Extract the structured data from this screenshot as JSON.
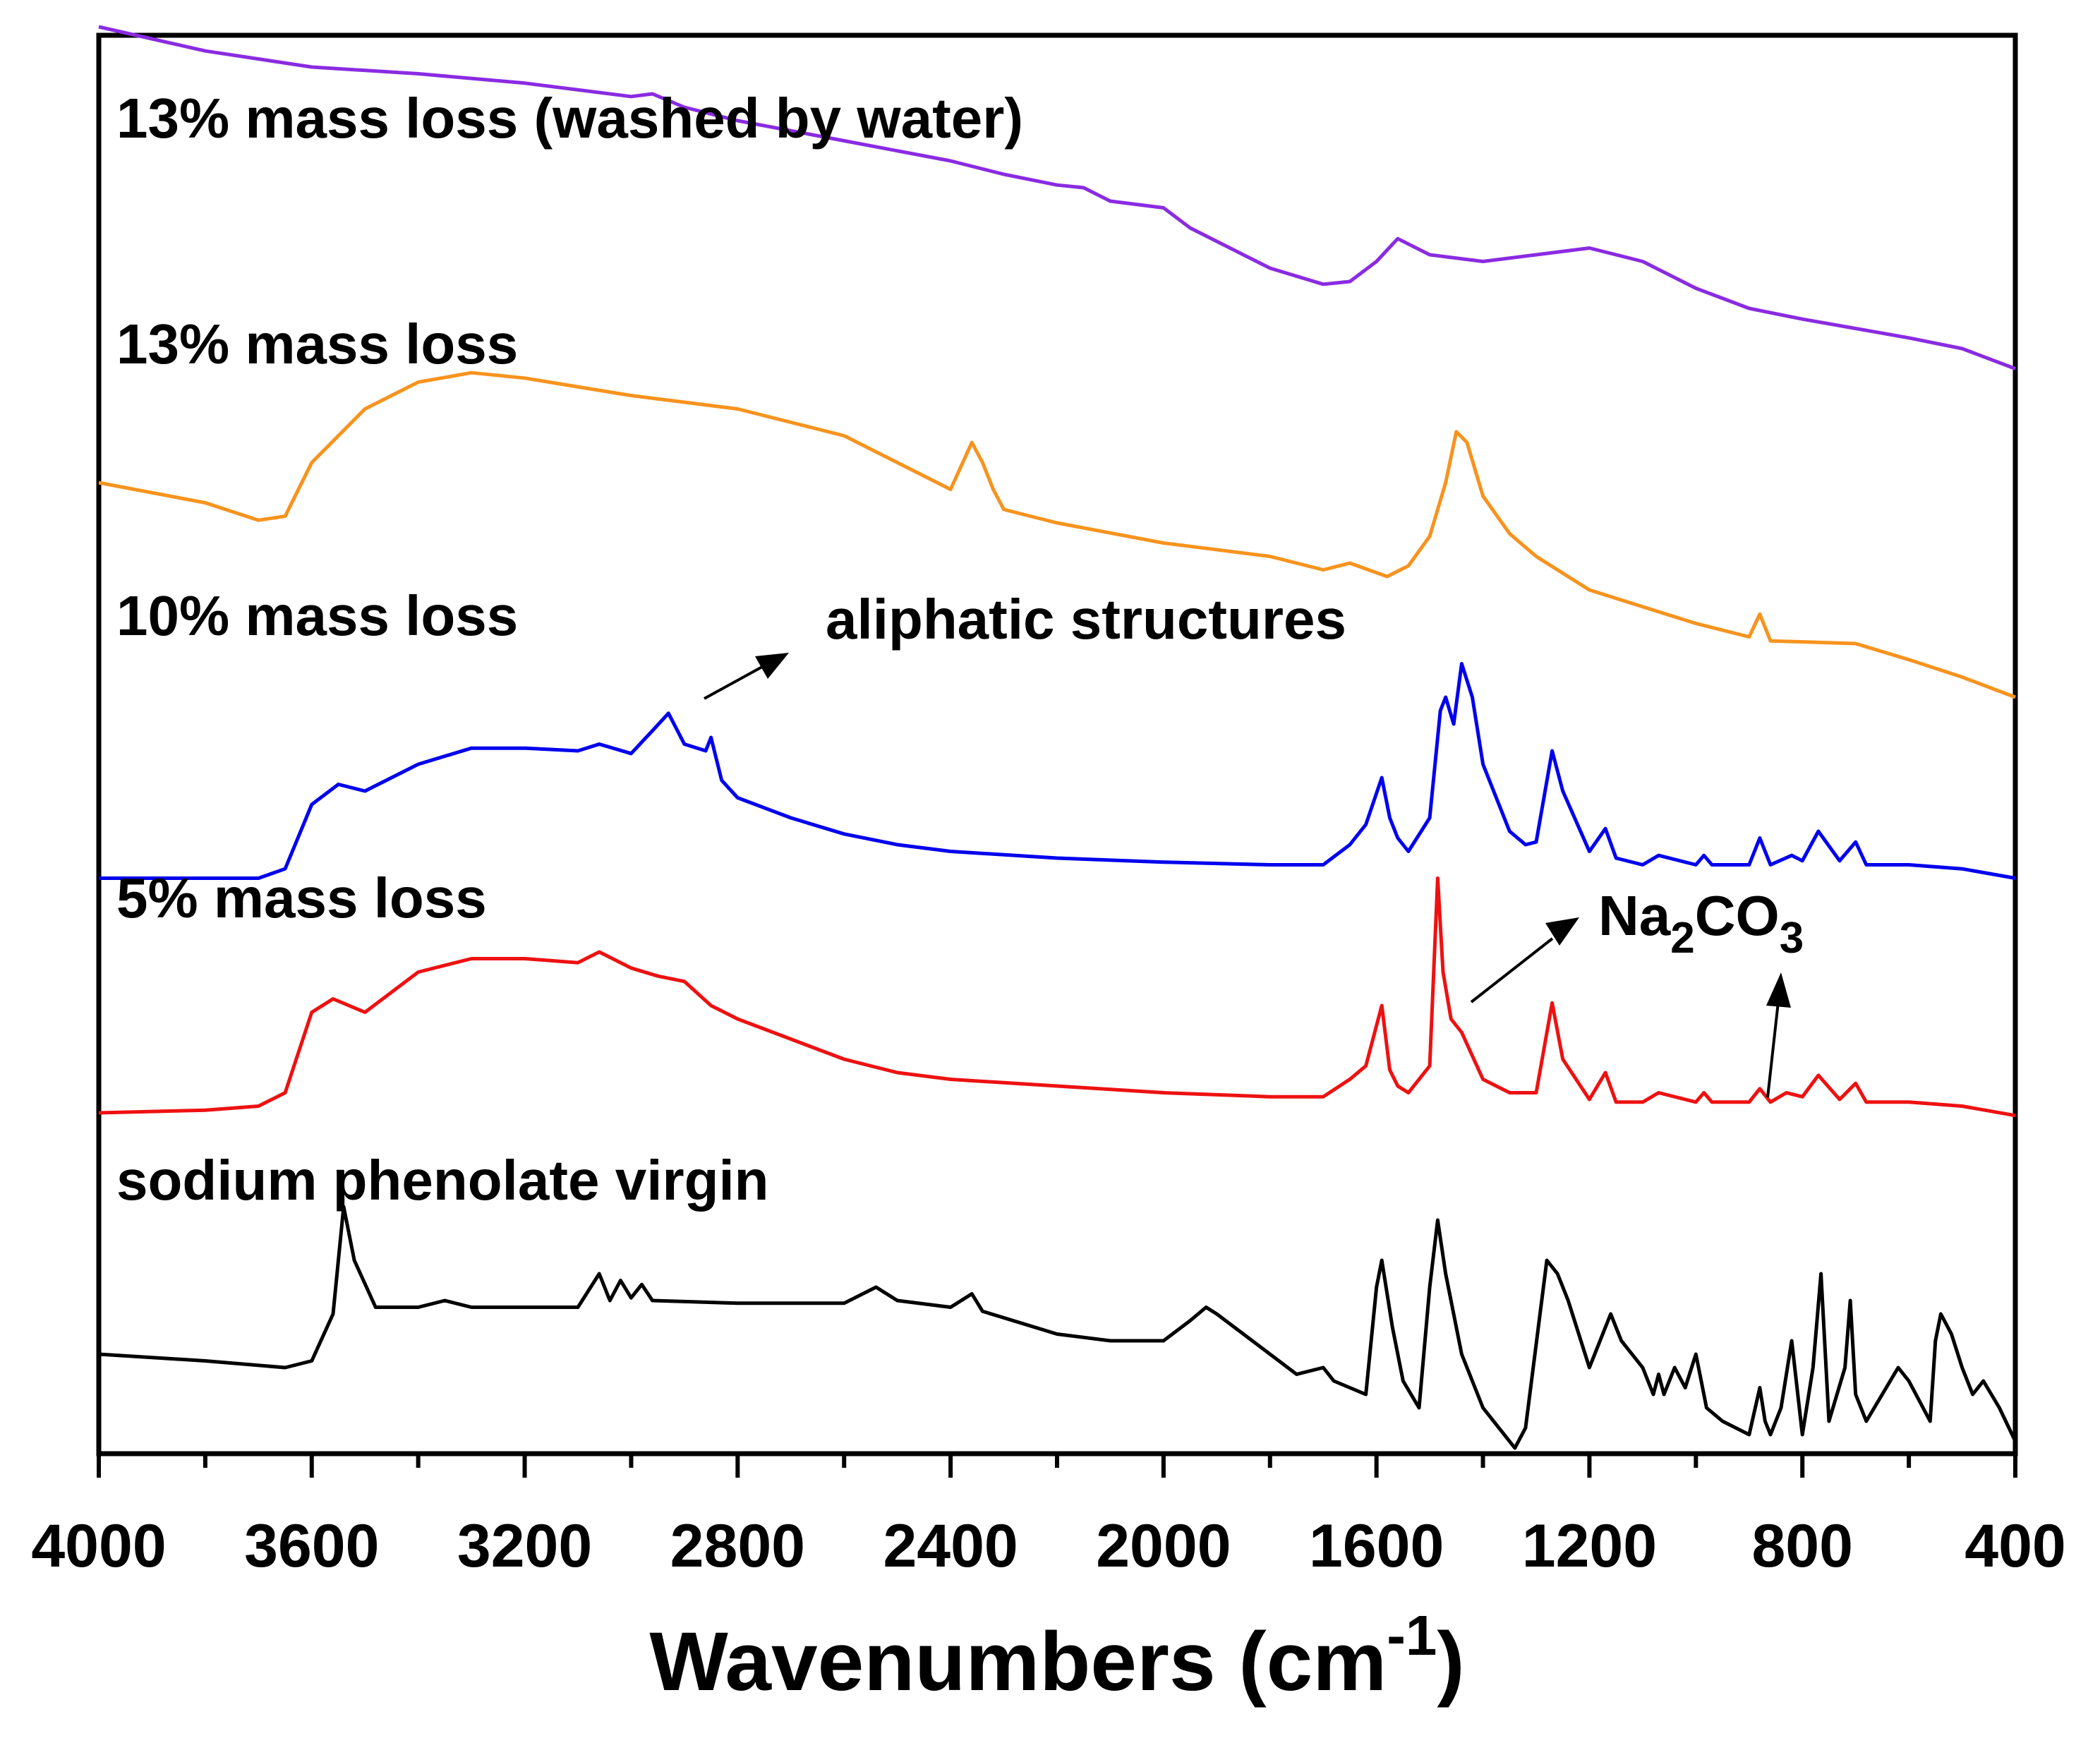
{
  "chart_data": {
    "type": "line",
    "title": "",
    "xlabel": "Wavenumbers (cm",
    "xlabel_superscript": "-1",
    "xlabel_close": ")",
    "ylabel": "",
    "xlim": [
      4000,
      400
    ],
    "x_ticks": [
      "4000",
      "3600",
      "3200",
      "2800",
      "2400",
      "2000",
      "1600",
      "1200",
      "800",
      "400"
    ],
    "grid": false,
    "series": [
      {
        "name": "13% mass loss (washed by water)",
        "color": "#8a2be2",
        "x": [
          4000,
          3800,
          3600,
          3400,
          3200,
          3000,
          2960,
          2900,
          2800,
          2600,
          2400,
          2350,
          2300,
          2200,
          2150,
          2100,
          2000,
          1950,
          1900,
          1800,
          1700,
          1650,
          1600,
          1560,
          1500,
          1400,
          1300,
          1200,
          1100,
          1000,
          900,
          800,
          700,
          600,
          500,
          400
        ],
        "values": [
          8.8,
          8.62,
          8.5,
          8.45,
          8.38,
          8.28,
          8.3,
          8.2,
          8.1,
          7.95,
          7.8,
          7.75,
          7.7,
          7.62,
          7.6,
          7.5,
          7.45,
          7.3,
          7.2,
          7.0,
          6.88,
          6.9,
          7.05,
          7.22,
          7.1,
          7.05,
          7.1,
          7.15,
          7.05,
          6.85,
          6.7,
          6.62,
          6.55,
          6.48,
          6.4,
          6.25
        ]
      },
      {
        "name": "13% mass loss",
        "color": "#f7931e",
        "x": [
          4000,
          3800,
          3700,
          3650,
          3600,
          3500,
          3400,
          3300,
          3200,
          3000,
          2800,
          2600,
          2500,
          2400,
          2360,
          2340,
          2320,
          2300,
          2200,
          2000,
          1800,
          1700,
          1650,
          1580,
          1540,
          1500,
          1470,
          1450,
          1430,
          1400,
          1350,
          1300,
          1200,
          1000,
          900,
          880,
          860,
          700,
          600,
          500,
          400
        ],
        "values": [
          5.4,
          5.25,
          5.12,
          5.15,
          5.55,
          5.95,
          6.15,
          6.22,
          6.18,
          6.05,
          5.95,
          5.75,
          5.55,
          5.35,
          5.7,
          5.55,
          5.35,
          5.2,
          5.1,
          4.95,
          4.85,
          4.75,
          4.8,
          4.7,
          4.78,
          5.0,
          5.4,
          5.78,
          5.7,
          5.3,
          5.02,
          4.85,
          4.6,
          4.35,
          4.25,
          4.42,
          4.22,
          4.2,
          4.08,
          3.95,
          3.8
        ]
      },
      {
        "name": "10% mass loss",
        "color": "#0000ee",
        "x": [
          4000,
          3800,
          3700,
          3650,
          3600,
          3550,
          3500,
          3400,
          3300,
          3200,
          3100,
          3060,
          3000,
          2960,
          2930,
          2900,
          2860,
          2850,
          2830,
          2800,
          2700,
          2600,
          2500,
          2400,
          2200,
          2000,
          1800,
          1700,
          1650,
          1620,
          1590,
          1575,
          1560,
          1540,
          1500,
          1480,
          1470,
          1455,
          1440,
          1420,
          1400,
          1350,
          1320,
          1300,
          1270,
          1250,
          1200,
          1170,
          1150,
          1100,
          1070,
          1000,
          985,
          970,
          900,
          880,
          860,
          820,
          800,
          770,
          730,
          700,
          680,
          600,
          500,
          400
        ],
        "values": [
          2.45,
          2.45,
          2.45,
          2.52,
          3.0,
          3.15,
          3.1,
          3.3,
          3.42,
          3.42,
          3.4,
          3.45,
          3.38,
          3.55,
          3.68,
          3.45,
          3.4,
          3.5,
          3.18,
          3.05,
          2.9,
          2.78,
          2.7,
          2.65,
          2.6,
          2.57,
          2.55,
          2.55,
          2.7,
          2.85,
          3.2,
          2.9,
          2.75,
          2.65,
          2.9,
          3.7,
          3.8,
          3.6,
          4.05,
          3.8,
          3.3,
          2.8,
          2.7,
          2.72,
          3.4,
          3.1,
          2.65,
          2.82,
          2.6,
          2.55,
          2.62,
          2.55,
          2.62,
          2.55,
          2.55,
          2.75,
          2.55,
          2.62,
          2.58,
          2.8,
          2.58,
          2.72,
          2.55,
          2.55,
          2.52,
          2.45
        ]
      },
      {
        "name": "5% mass loss",
        "color": "#ee1111",
        "x": [
          4000,
          3800,
          3700,
          3650,
          3600,
          3560,
          3500,
          3400,
          3300,
          3200,
          3100,
          3060,
          3000,
          2950,
          2900,
          2850,
          2800,
          2700,
          2600,
          2500,
          2400,
          2200,
          2000,
          1800,
          1700,
          1650,
          1620,
          1590,
          1575,
          1560,
          1540,
          1500,
          1485,
          1475,
          1460,
          1440,
          1400,
          1350,
          1300,
          1270,
          1250,
          1200,
          1170,
          1150,
          1100,
          1070,
          1000,
          985,
          970,
          900,
          880,
          860,
          830,
          800,
          770,
          730,
          700,
          680,
          600,
          500,
          400
        ],
        "values": [
          0.7,
          0.72,
          0.75,
          0.85,
          1.45,
          1.55,
          1.45,
          1.75,
          1.85,
          1.85,
          1.82,
          1.9,
          1.78,
          1.72,
          1.68,
          1.5,
          1.4,
          1.25,
          1.1,
          1.0,
          0.95,
          0.9,
          0.85,
          0.82,
          0.82,
          0.95,
          1.05,
          1.5,
          1.02,
          0.9,
          0.85,
          1.05,
          2.45,
          1.75,
          1.4,
          1.3,
          0.95,
          0.85,
          0.85,
          1.52,
          1.1,
          0.8,
          1.0,
          0.78,
          0.78,
          0.85,
          0.78,
          0.85,
          0.78,
          0.78,
          0.88,
          0.78,
          0.85,
          0.82,
          0.98,
          0.8,
          0.92,
          0.78,
          0.78,
          0.75,
          0.68
        ]
      },
      {
        "name": "sodium phenolate virgin",
        "color": "#000000",
        "x": [
          4000,
          3800,
          3650,
          3600,
          3560,
          3540,
          3520,
          3480,
          3400,
          3350,
          3300,
          3100,
          3060,
          3040,
          3020,
          3000,
          2980,
          2960,
          2800,
          2600,
          2540,
          2500,
          2400,
          2360,
          2340,
          2200,
          2100,
          2000,
          1950,
          1920,
          1900,
          1850,
          1750,
          1700,
          1680,
          1620,
          1600,
          1590,
          1570,
          1550,
          1520,
          1500,
          1485,
          1470,
          1440,
          1400,
          1340,
          1320,
          1280,
          1260,
          1240,
          1200,
          1160,
          1140,
          1100,
          1080,
          1070,
          1060,
          1040,
          1020,
          1000,
          990,
          980,
          950,
          900,
          880,
          870,
          860,
          840,
          820,
          800,
          780,
          765,
          750,
          720,
          710,
          700,
          680,
          650,
          620,
          600,
          560,
          550,
          540,
          520,
          500,
          480,
          460,
          430,
          400
        ],
        "values": [
          -1.1,
          -1.15,
          -1.2,
          -1.15,
          -0.8,
          0.0,
          -0.4,
          -0.75,
          -0.75,
          -0.7,
          -0.75,
          -0.75,
          -0.5,
          -0.7,
          -0.55,
          -0.68,
          -0.58,
          -0.7,
          -0.72,
          -0.72,
          -0.6,
          -0.7,
          -0.75,
          -0.65,
          -0.78,
          -0.95,
          -1.0,
          -1.0,
          -0.85,
          -0.75,
          -0.8,
          -0.95,
          -1.25,
          -1.2,
          -1.3,
          -1.4,
          -0.6,
          -0.4,
          -0.9,
          -1.3,
          -1.5,
          -0.6,
          -0.1,
          -0.5,
          -1.1,
          -1.5,
          -1.8,
          -1.65,
          -0.4,
          -0.5,
          -0.7,
          -1.2,
          -0.8,
          -1.0,
          -1.2,
          -1.4,
          -1.25,
          -1.4,
          -1.2,
          -1.35,
          -1.1,
          -1.3,
          -1.5,
          -1.6,
          -1.7,
          -1.35,
          -1.6,
          -1.7,
          -1.5,
          -1.0,
          -1.7,
          -1.2,
          -0.5,
          -1.6,
          -1.2,
          -0.7,
          -1.4,
          -1.6,
          -1.4,
          -1.2,
          -1.3,
          -1.6,
          -1.0,
          -0.8,
          -0.95,
          -1.2,
          -1.4,
          -1.3,
          -1.5,
          -1.75
        ]
      }
    ],
    "annotations": [
      "aliphatic structures",
      "Na",
      "2",
      "CO",
      "3"
    ]
  }
}
